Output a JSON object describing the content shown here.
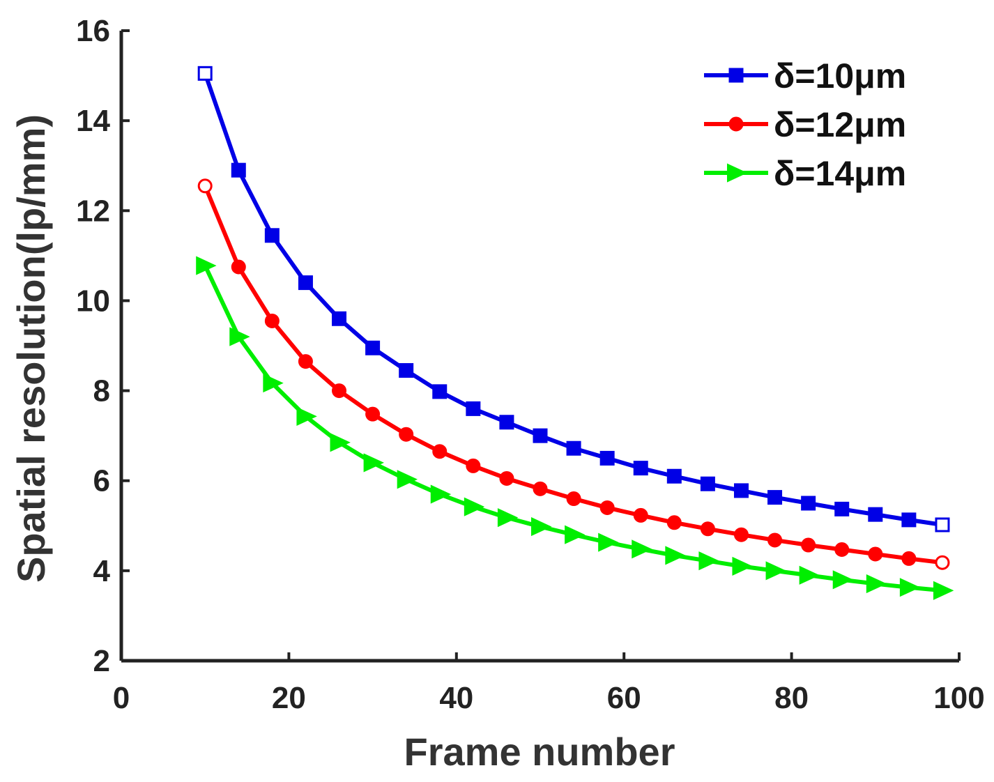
{
  "chart_data": {
    "type": "line",
    "title": "",
    "xlabel": "Frame number",
    "ylabel": "Spatial resolution(lp/mm)",
    "xlim": [
      0,
      100
    ],
    "ylim": [
      2,
      16
    ],
    "xticks": [
      0,
      20,
      40,
      60,
      80,
      100
    ],
    "yticks": [
      2,
      4,
      6,
      8,
      10,
      12,
      14,
      16
    ],
    "grid": false,
    "legend_position": "top-right",
    "x": [
      10,
      14,
      18,
      22,
      26,
      30,
      34,
      38,
      42,
      46,
      50,
      54,
      58,
      62,
      66,
      70,
      74,
      78,
      82,
      86,
      90,
      94,
      98
    ],
    "series": [
      {
        "name": "δ=10μm",
        "color": "#0000e6",
        "marker": "square",
        "values": [
          15.05,
          12.9,
          11.45,
          10.4,
          9.6,
          8.95,
          8.45,
          7.98,
          7.6,
          7.3,
          7.0,
          6.72,
          6.5,
          6.28,
          6.1,
          5.93,
          5.78,
          5.63,
          5.5,
          5.37,
          5.25,
          5.13,
          5.02
        ]
      },
      {
        "name": "δ=12μm",
        "color": "#ff0000",
        "marker": "circle",
        "values": [
          12.55,
          10.75,
          9.55,
          8.65,
          8.0,
          7.48,
          7.03,
          6.65,
          6.33,
          6.05,
          5.82,
          5.6,
          5.4,
          5.23,
          5.07,
          4.93,
          4.8,
          4.68,
          4.57,
          4.47,
          4.37,
          4.27,
          4.18
        ]
      },
      {
        "name": "δ=14μm",
        "color": "#00ee00",
        "marker": "triangle-right",
        "values": [
          10.78,
          9.2,
          8.17,
          7.43,
          6.85,
          6.4,
          6.03,
          5.7,
          5.42,
          5.18,
          4.98,
          4.8,
          4.63,
          4.48,
          4.34,
          4.22,
          4.1,
          4.0,
          3.9,
          3.8,
          3.71,
          3.63,
          3.56
        ]
      }
    ]
  }
}
